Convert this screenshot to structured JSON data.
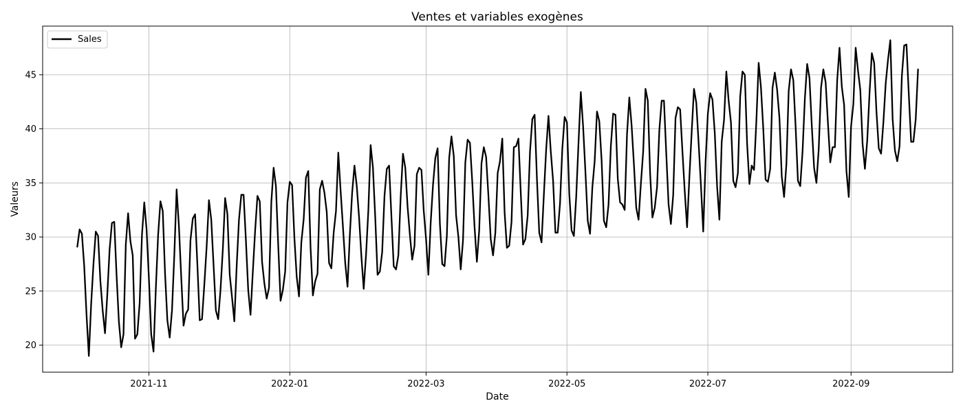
{
  "chart_data": {
    "type": "line",
    "title": "Ventes et variables exogènes",
    "xlabel": "Date",
    "ylabel": "Valeurs",
    "xlim": [
      "2021-09-16",
      "2022-10-15"
    ],
    "ylim": [
      17.5,
      49.5
    ],
    "x_ticks": [
      {
        "date": "2021-11-01",
        "label": "2021-11"
      },
      {
        "date": "2022-01-01",
        "label": "2022-01"
      },
      {
        "date": "2022-03-01",
        "label": "2022-03"
      },
      {
        "date": "2022-05-01",
        "label": "2022-05"
      },
      {
        "date": "2022-07-01",
        "label": "2022-07"
      },
      {
        "date": "2022-09-01",
        "label": "2022-09"
      }
    ],
    "y_ticks": [
      20,
      25,
      30,
      35,
      40,
      45
    ],
    "grid": true,
    "legend_position": "top-left",
    "series": [
      {
        "name": "Sales",
        "color": "#000000",
        "start_date": "2021-10-01",
        "frequency": "daily",
        "values": [
          29.1,
          30.7,
          30.3,
          27.3,
          22.8,
          19.0,
          23.8,
          27.5,
          30.5,
          30.1,
          25.9,
          23.2,
          21.1,
          24.7,
          28.9,
          31.3,
          31.4,
          26.5,
          22.2,
          19.8,
          21.0,
          29.3,
          32.2,
          29.6,
          28.3,
          20.6,
          21.0,
          23.9,
          30.2,
          33.2,
          30.7,
          26.2,
          21.0,
          19.4,
          25.2,
          30.2,
          33.3,
          32.4,
          26.6,
          22.3,
          20.7,
          23.2,
          28.3,
          34.4,
          31.0,
          26.3,
          21.8,
          22.9,
          23.3,
          29.7,
          31.7,
          32.1,
          27.4,
          22.3,
          22.4,
          25.6,
          29.1,
          33.4,
          31.6,
          27.4,
          23.2,
          22.4,
          25.1,
          28.8,
          33.6,
          32.1,
          26.5,
          24.4,
          22.2,
          27.3,
          31.6,
          33.9,
          33.9,
          29.7,
          25.1,
          22.8,
          26.8,
          30.6,
          33.8,
          33.3,
          27.7,
          25.7,
          24.3,
          25.3,
          33.2,
          36.4,
          34.7,
          29.2,
          24.1,
          25.1,
          26.8,
          33.2,
          35.1,
          34.8,
          29.9,
          26.3,
          24.5,
          29.5,
          31.6,
          35.5,
          36.1,
          29.0,
          24.6,
          25.9,
          26.6,
          34.4,
          35.2,
          34.1,
          32.3,
          27.6,
          27.1,
          30.4,
          32.4,
          37.8,
          34.3,
          31.0,
          27.6,
          25.4,
          30.2,
          34.1,
          36.6,
          34.7,
          31.8,
          28.2,
          25.2,
          28.3,
          32.4,
          38.5,
          36.4,
          31.8,
          26.5,
          26.8,
          28.6,
          33.8,
          36.3,
          36.6,
          31.9,
          27.3,
          27.0,
          28.3,
          33.7,
          37.7,
          36.4,
          32.8,
          30.2,
          27.9,
          29.2,
          35.8,
          36.4,
          36.2,
          32.4,
          29.8,
          26.5,
          31.3,
          34.8,
          37.3,
          38.2,
          31.2,
          27.5,
          27.3,
          30.1,
          37.3,
          39.3,
          37.5,
          32.0,
          30.0,
          27.0,
          29.7,
          36.9,
          39.0,
          38.7,
          35.1,
          30.9,
          27.7,
          30.6,
          36.8,
          38.3,
          37.4,
          33.8,
          29.8,
          28.3,
          30.4,
          35.9,
          37.0,
          39.1,
          32.3,
          29.0,
          29.2,
          31.4,
          38.3,
          38.4,
          39.1,
          34.1,
          29.3,
          29.8,
          32.0,
          37.9,
          40.9,
          41.3,
          35.4,
          30.4,
          29.5,
          33.9,
          38.1,
          41.2,
          37.9,
          35.2,
          30.4,
          30.4,
          33.1,
          38.2,
          41.1,
          40.6,
          34.0,
          30.6,
          30.1,
          33.7,
          38.7,
          43.4,
          40.2,
          36.0,
          31.5,
          30.3,
          34.6,
          37.0,
          41.6,
          40.7,
          37.1,
          31.5,
          30.9,
          33.0,
          38.4,
          41.4,
          41.3,
          35.4,
          33.2,
          33.0,
          32.5,
          39.5,
          42.9,
          40.3,
          36.7,
          32.7,
          31.6,
          34.9,
          37.9,
          43.7,
          42.6,
          35.9,
          31.8,
          32.7,
          34.6,
          39.9,
          42.6,
          42.6,
          37.7,
          33.0,
          31.2,
          33.9,
          41.0,
          42.0,
          41.8,
          37.9,
          34.2,
          30.9,
          35.5,
          39.7,
          43.7,
          42.4,
          38.7,
          34.8,
          30.5,
          36.9,
          41.4,
          43.3,
          42.7,
          39.6,
          34.7,
          31.6,
          38.8,
          40.8,
          45.3,
          42.6,
          40.6,
          35.2,
          34.6,
          35.9,
          43.0,
          45.3,
          45.0,
          38.6,
          34.9,
          36.6,
          36.2,
          40.7,
          46.1,
          43.8,
          40.0,
          35.3,
          35.1,
          36.3,
          43.8,
          45.2,
          43.6,
          41.0,
          35.6,
          33.7,
          36.7,
          43.5,
          45.5,
          44.5,
          40.2,
          35.2,
          34.7,
          37.9,
          42.8,
          46.0,
          44.7,
          40.3,
          36.4,
          35.0,
          38.1,
          43.8,
          45.5,
          44.3,
          40.5,
          36.9,
          38.3,
          38.3,
          44.5,
          47.5,
          43.9,
          42.2,
          36.1,
          33.7,
          40.2,
          42.3,
          47.5,
          45.4,
          43.6,
          38.6,
          36.3,
          38.9,
          43.3,
          47.0,
          46.1,
          41.6,
          38.2,
          37.7,
          40.6,
          44.2,
          46.4,
          48.2,
          40.9,
          38.0,
          37.0,
          38.4,
          44.9,
          47.7,
          47.8,
          43.2,
          38.8,
          38.8,
          40.9,
          45.5
        ]
      }
    ]
  }
}
